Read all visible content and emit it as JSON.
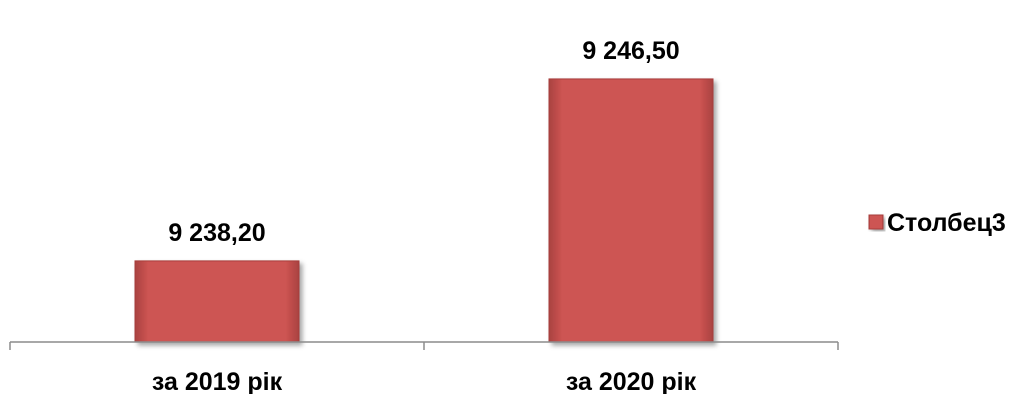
{
  "chart_data": {
    "type": "bar",
    "categories": [
      "за 2019 рік",
      "за 2020 рік"
    ],
    "series": [
      {
        "name": "Столбец3",
        "values": [
          9238.2,
          9246.5
        ],
        "labels": [
          "9 238,20",
          "9 246,50"
        ]
      }
    ],
    "ylim": [
      9234.5,
      9247.5
    ],
    "grid": false,
    "legend_position": "right",
    "colors": {
      "bar": "#cd5452",
      "bar_edge": "#a63c3a",
      "axis": "#808080"
    }
  }
}
